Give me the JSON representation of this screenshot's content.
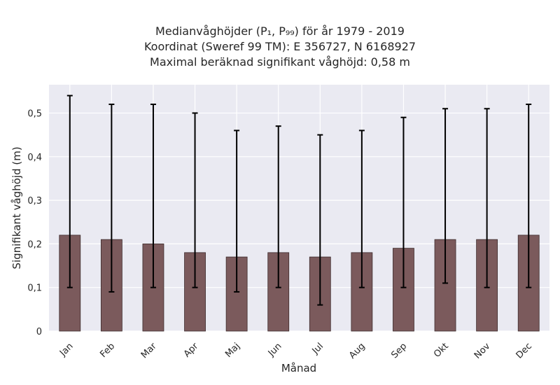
{
  "chart_data": {
    "type": "bar",
    "title_lines": [
      "Medianvåghöjder (P₁, P₉₉) för år 1979 - 2019",
      "Koordinat (Sweref 99 TM): E 356727, N 6168927",
      "Maximal beräknad signifikant våghöjd: 0,58 m"
    ],
    "xlabel": "Månad",
    "ylabel": "Signifikant våghöjd (m)",
    "categories": [
      "Jan",
      "Feb",
      "Mar",
      "Apr",
      "Maj",
      "Jun",
      "Jul",
      "Aug",
      "Sep",
      "Okt",
      "Nov",
      "Dec"
    ],
    "series": [
      {
        "values": [
          0.22,
          0.21,
          0.2,
          0.18,
          0.17,
          0.18,
          0.17,
          0.18,
          0.19,
          0.21,
          0.21,
          0.22
        ],
        "p1": [
          0.1,
          0.09,
          0.1,
          0.1,
          0.09,
          0.1,
          0.06,
          0.1,
          0.1,
          0.11,
          0.1,
          0.1
        ],
        "p99": [
          0.54,
          0.52,
          0.52,
          0.5,
          0.46,
          0.47,
          0.45,
          0.46,
          0.49,
          0.51,
          0.51,
          0.52
        ]
      }
    ],
    "ylim": [
      0,
      0.565
    ],
    "yticks": [
      0,
      0.1,
      0.2,
      0.3,
      0.4,
      0.5
    ],
    "ytick_labels": [
      "0",
      "0,1",
      "0,2",
      "0,3",
      "0,4",
      "0,5"
    ],
    "grid": true,
    "colors": {
      "bar": "#7b5a5c",
      "bar_edge": "#3d2c2d",
      "error": "#000000",
      "plot_bg": "#eaeaf2",
      "grid": "#ffffff"
    }
  }
}
